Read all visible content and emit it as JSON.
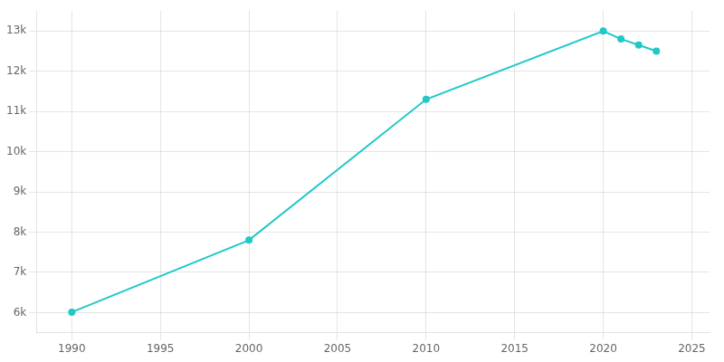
{
  "chart_data": {
    "type": "line",
    "x": [
      1990,
      2000,
      2010,
      2020,
      2021,
      2022,
      2023
    ],
    "values": [
      6010,
      7800,
      11300,
      13000,
      12800,
      12650,
      12500
    ],
    "color": "#22c8c8",
    "marker": "circle",
    "xlim": [
      1988,
      2026
    ],
    "ylim": [
      5500,
      13500
    ],
    "xticks": [
      1990,
      1995,
      2000,
      2005,
      2010,
      2015,
      2020,
      2025
    ],
    "yticks": [
      {
        "value": 6000,
        "label": "6k"
      },
      {
        "value": 7000,
        "label": "7k"
      },
      {
        "value": 8000,
        "label": "8k"
      },
      {
        "value": 9000,
        "label": "9k"
      },
      {
        "value": 10000,
        "label": "10k"
      },
      {
        "value": 11000,
        "label": "11k"
      },
      {
        "value": 12000,
        "label": "12k"
      },
      {
        "value": 13000,
        "label": "13k"
      }
    ],
    "grid": true
  }
}
